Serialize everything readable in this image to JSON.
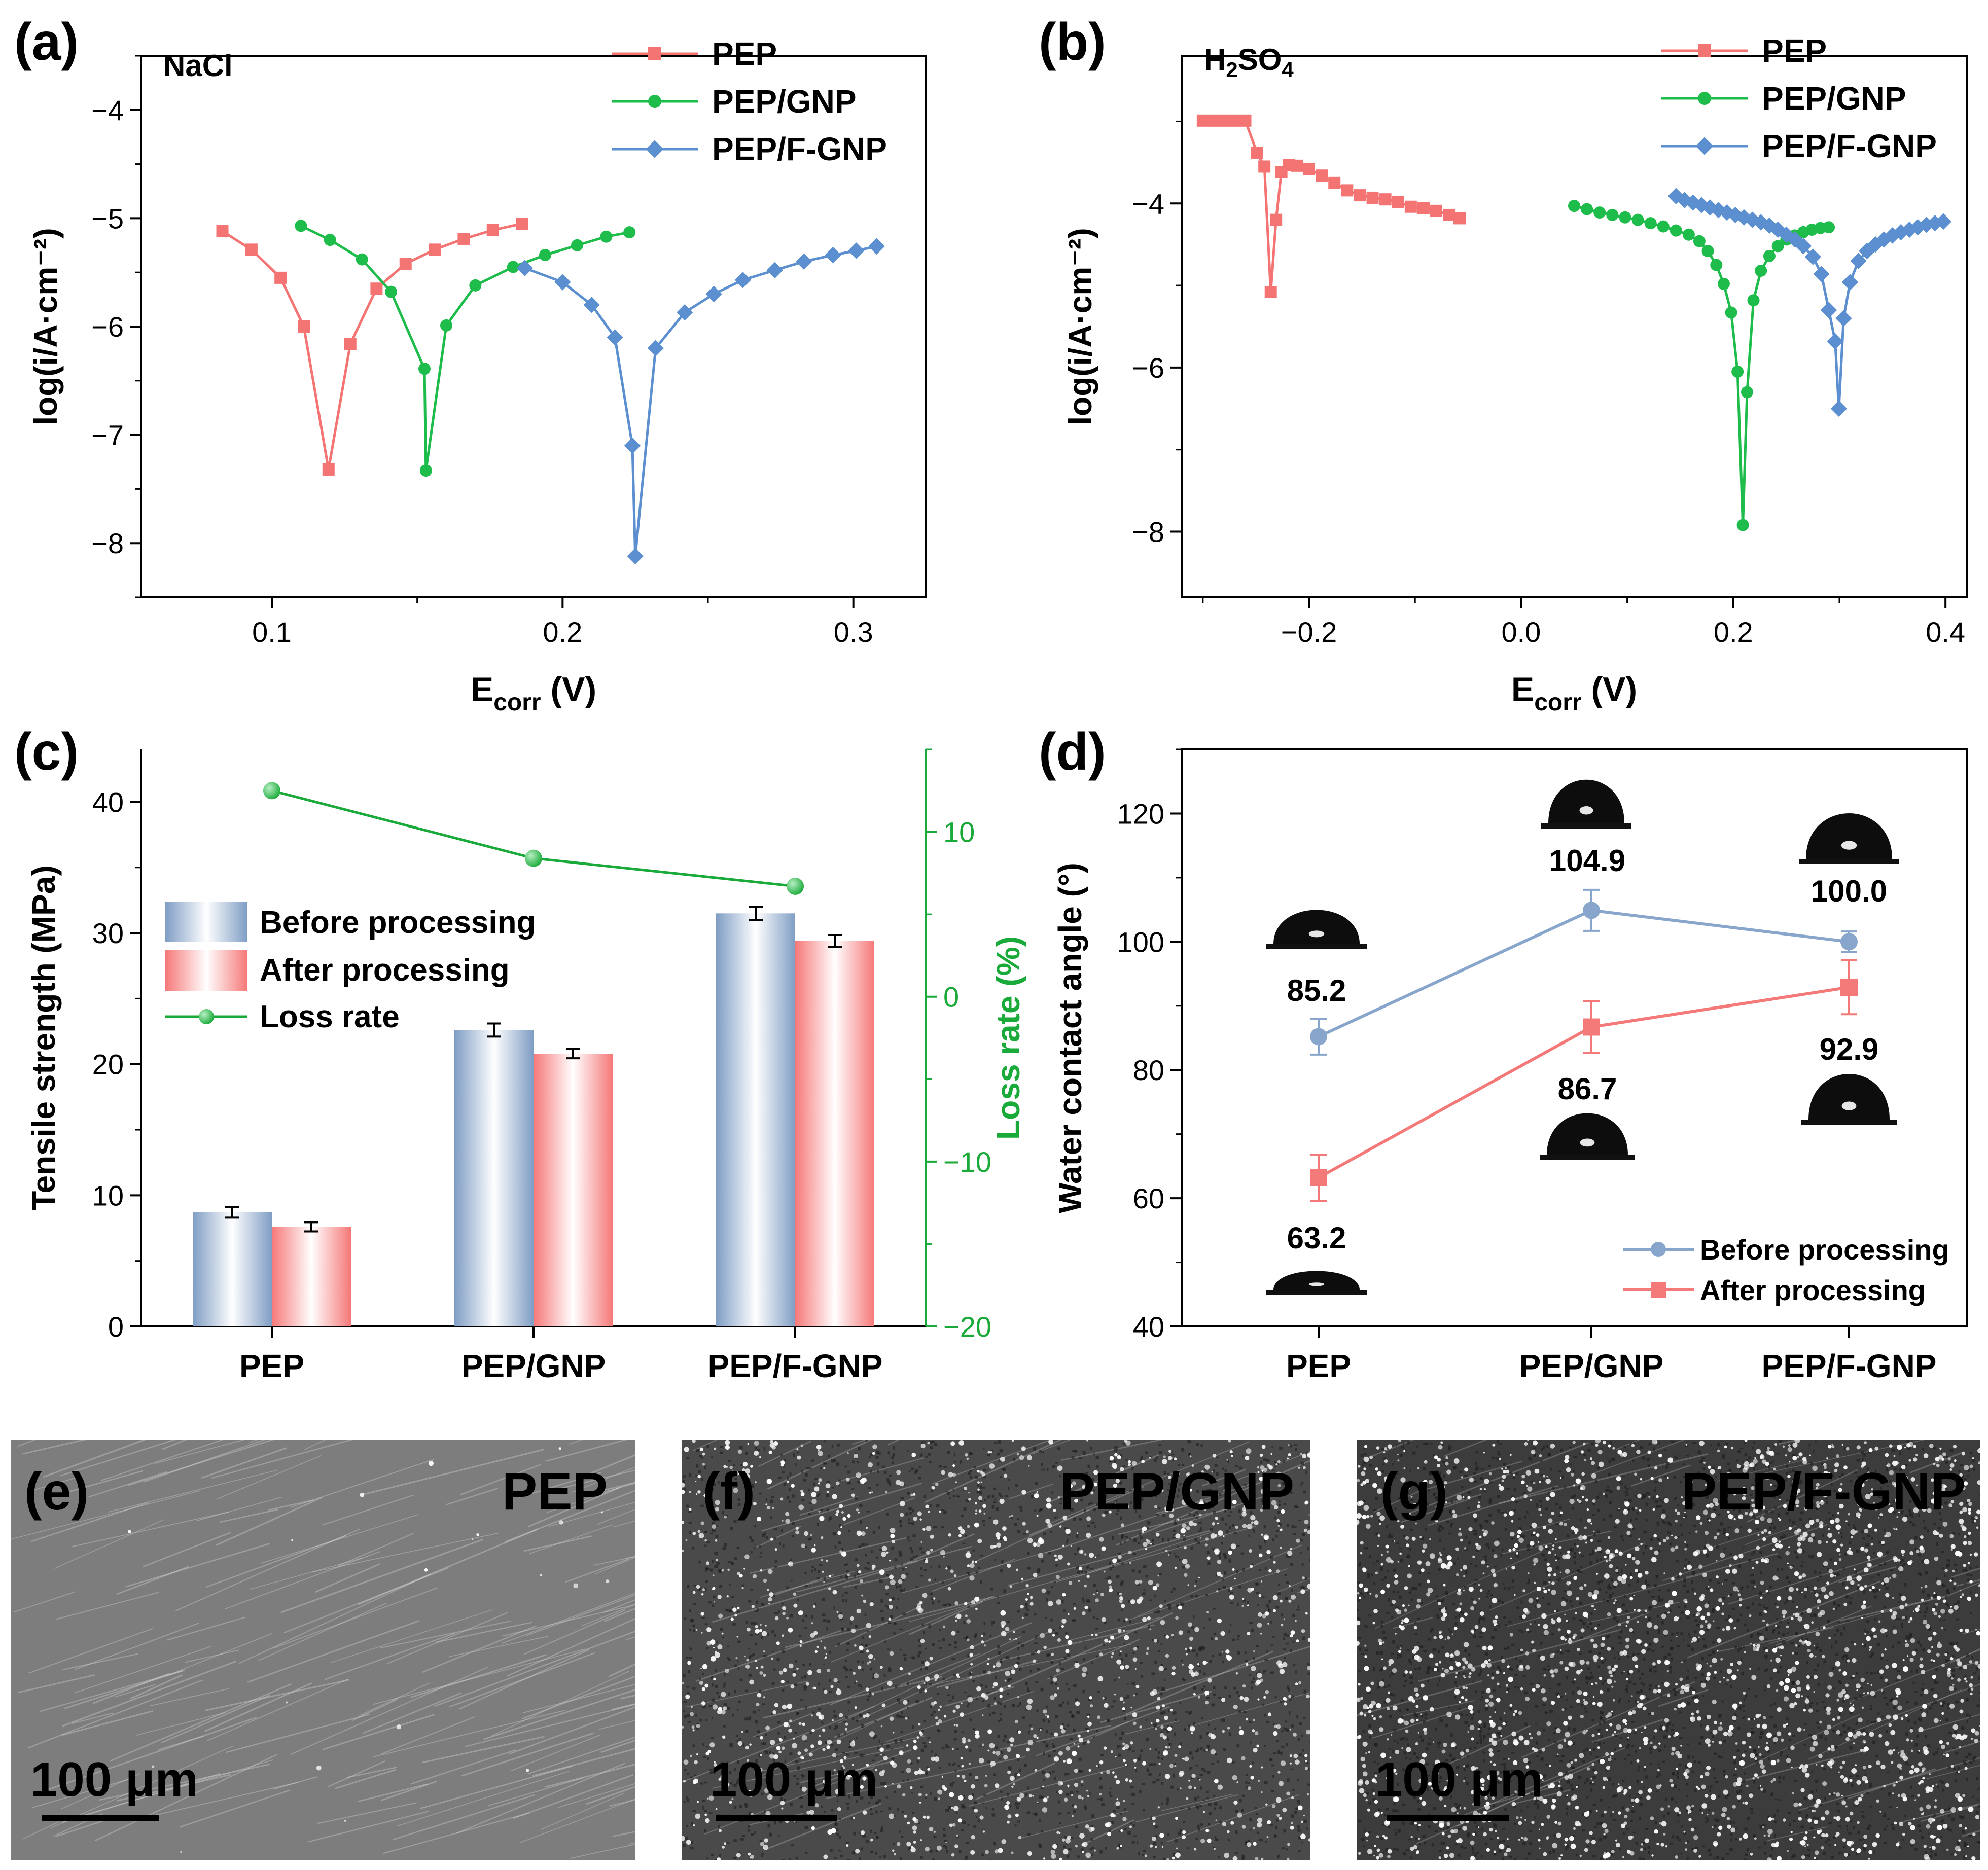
{
  "panel_letters": {
    "a": "(a)",
    "b": "(b)",
    "c": "(c)",
    "d": "(d)",
    "e": "(e)",
    "f": "(f)",
    "g": "(g)"
  },
  "colors": {
    "pep": "#f47474",
    "gnp": "#1ebc4a",
    "fgnp": "#5b8fd0",
    "loss": "#1aaa3a",
    "before": "#88a6cc",
    "after": "#f47a7a"
  },
  "chart_data": [
    {
      "id": "a",
      "type": "line",
      "annotation": "NaCl",
      "xlabel_main": "E",
      "xlabel_sub": "corr",
      "xlabel_unit": " (V)",
      "ylabel": "log(i/A·cm⁻²)",
      "xlim": [
        0.055,
        0.325
      ],
      "ylim": [
        -8.5,
        -3.5
      ],
      "xticks": [
        0.1,
        0.2,
        0.3
      ],
      "xtick_labels": [
        "0.1",
        "0.2",
        "0.3"
      ],
      "yticks": [
        -4,
        -5,
        -6,
        -7,
        -8
      ],
      "ytick_labels": [
        "−4",
        "−5",
        "−6",
        "−7",
        "−8"
      ],
      "series": [
        {
          "name": "PEP",
          "marker": "square",
          "color": "#f47474",
          "ecorr": 0.1195,
          "imin": -7.32,
          "points": [
            [
              0.083,
              -5.12
            ],
            [
              0.093,
              -5.29
            ],
            [
              0.103,
              -5.55
            ],
            [
              0.111,
              -6.0
            ],
            [
              0.1195,
              -7.32
            ],
            [
              0.127,
              -6.16
            ],
            [
              0.136,
              -5.65
            ],
            [
              0.146,
              -5.42
            ],
            [
              0.156,
              -5.29
            ],
            [
              0.166,
              -5.19
            ],
            [
              0.176,
              -5.11
            ],
            [
              0.186,
              -5.05
            ]
          ]
        },
        {
          "name": "PEP/GNP",
          "marker": "circle",
          "color": "#1ebc4a",
          "ecorr": 0.153,
          "imin": -7.33,
          "points": [
            [
              0.11,
              -5.07
            ],
            [
              0.12,
              -5.2
            ],
            [
              0.131,
              -5.38
            ],
            [
              0.141,
              -5.68
            ],
            [
              0.1525,
              -6.39
            ],
            [
              0.153,
              -7.33
            ],
            [
              0.16,
              -5.99
            ],
            [
              0.17,
              -5.62
            ],
            [
              0.183,
              -5.45
            ],
            [
              0.194,
              -5.34
            ],
            [
              0.205,
              -5.25
            ],
            [
              0.215,
              -5.17
            ],
            [
              0.223,
              -5.13
            ]
          ]
        },
        {
          "name": "PEP/F-GNP",
          "marker": "diamond",
          "color": "#5b8fd0",
          "ecorr": 0.225,
          "imin": -8.12,
          "points": [
            [
              0.187,
              -5.46
            ],
            [
              0.2,
              -5.59
            ],
            [
              0.21,
              -5.8
            ],
            [
              0.218,
              -6.1
            ],
            [
              0.224,
              -7.1
            ],
            [
              0.225,
              -8.12
            ],
            [
              0.232,
              -6.2
            ],
            [
              0.242,
              -5.87
            ],
            [
              0.252,
              -5.7
            ],
            [
              0.262,
              -5.57
            ],
            [
              0.273,
              -5.48
            ],
            [
              0.283,
              -5.4
            ],
            [
              0.293,
              -5.34
            ],
            [
              0.301,
              -5.3
            ],
            [
              0.308,
              -5.26
            ]
          ]
        }
      ]
    },
    {
      "id": "b",
      "type": "line",
      "annotation_main": "H",
      "annotation_sub1": "2",
      "annotation_mid": "SO",
      "annotation_sub2": "4",
      "xlabel_main": "E",
      "xlabel_sub": "corr",
      "xlabel_unit": " (V)",
      "ylabel": "log(i/A·cm⁻²)",
      "xlim": [
        -0.32,
        0.42
      ],
      "ylim": [
        -8.8,
        -2.2
      ],
      "xticks": [
        -0.2,
        0.0,
        0.2,
        0.4
      ],
      "xtick_labels": [
        "−0.2",
        "0.0",
        "0.2",
        "0.4"
      ],
      "yticks": [
        -4,
        -6,
        -8
      ],
      "ytick_labels": [
        "−4",
        "−6",
        "−8"
      ],
      "series": [
        {
          "name": "PEP",
          "marker": "square",
          "color": "#f47474",
          "points": [
            [
              -0.3,
              -2.99
            ],
            [
              -0.29,
              -2.99
            ],
            [
              -0.28,
              -2.99
            ],
            [
              -0.27,
              -2.99
            ],
            [
              -0.26,
              -2.99
            ],
            [
              -0.249,
              -3.38
            ],
            [
              -0.242,
              -3.55
            ],
            [
              -0.236,
              -5.08
            ],
            [
              -0.231,
              -4.2
            ],
            [
              -0.226,
              -3.62
            ],
            [
              -0.219,
              -3.53
            ],
            [
              -0.211,
              -3.54
            ],
            [
              -0.2,
              -3.58
            ],
            [
              -0.188,
              -3.66
            ],
            [
              -0.176,
              -3.75
            ],
            [
              -0.164,
              -3.84
            ],
            [
              -0.152,
              -3.9
            ],
            [
              -0.14,
              -3.93
            ],
            [
              -0.128,
              -3.95
            ],
            [
              -0.116,
              -3.98
            ],
            [
              -0.104,
              -4.04
            ],
            [
              -0.092,
              -4.06
            ],
            [
              -0.08,
              -4.09
            ],
            [
              -0.068,
              -4.14
            ],
            [
              -0.058,
              -4.18
            ]
          ]
        },
        {
          "name": "PEP/GNP",
          "marker": "circle",
          "color": "#1ebc4a",
          "points": [
            [
              0.05,
              -4.03
            ],
            [
              0.062,
              -4.07
            ],
            [
              0.074,
              -4.11
            ],
            [
              0.086,
              -4.14
            ],
            [
              0.098,
              -4.17
            ],
            [
              0.11,
              -4.2
            ],
            [
              0.122,
              -4.24
            ],
            [
              0.134,
              -4.28
            ],
            [
              0.146,
              -4.33
            ],
            [
              0.158,
              -4.38
            ],
            [
              0.168,
              -4.46
            ],
            [
              0.176,
              -4.58
            ],
            [
              0.184,
              -4.75
            ],
            [
              0.191,
              -4.98
            ],
            [
              0.198,
              -5.33
            ],
            [
              0.204,
              -6.05
            ],
            [
              0.209,
              -7.92
            ],
            [
              0.213,
              -6.3
            ],
            [
              0.219,
              -5.18
            ],
            [
              0.226,
              -4.82
            ],
            [
              0.234,
              -4.64
            ],
            [
              0.242,
              -4.52
            ],
            [
              0.25,
              -4.44
            ],
            [
              0.258,
              -4.39
            ],
            [
              0.266,
              -4.35
            ],
            [
              0.274,
              -4.32
            ],
            [
              0.282,
              -4.3
            ],
            [
              0.29,
              -4.29
            ]
          ]
        },
        {
          "name": "PEP/F-GNP",
          "marker": "diamond",
          "color": "#5b8fd0",
          "points": [
            [
              0.146,
              -3.91
            ],
            [
              0.154,
              -3.96
            ],
            [
              0.162,
              -3.99
            ],
            [
              0.17,
              -4.02
            ],
            [
              0.178,
              -4.05
            ],
            [
              0.186,
              -4.08
            ],
            [
              0.194,
              -4.11
            ],
            [
              0.202,
              -4.14
            ],
            [
              0.21,
              -4.17
            ],
            [
              0.218,
              -4.2
            ],
            [
              0.226,
              -4.23
            ],
            [
              0.234,
              -4.27
            ],
            [
              0.242,
              -4.32
            ],
            [
              0.25,
              -4.38
            ],
            [
              0.258,
              -4.44
            ],
            [
              0.266,
              -4.52
            ],
            [
              0.275,
              -4.65
            ],
            [
              0.283,
              -4.86
            ],
            [
              0.29,
              -5.3
            ],
            [
              0.296,
              -5.68
            ],
            [
              0.2995,
              -6.5
            ],
            [
              0.304,
              -5.4
            ],
            [
              0.31,
              -4.96
            ],
            [
              0.318,
              -4.7
            ],
            [
              0.326,
              -4.58
            ],
            [
              0.334,
              -4.5
            ],
            [
              0.342,
              -4.44
            ],
            [
              0.35,
              -4.39
            ],
            [
              0.358,
              -4.35
            ],
            [
              0.366,
              -4.32
            ],
            [
              0.374,
              -4.29
            ],
            [
              0.382,
              -4.26
            ],
            [
              0.39,
              -4.24
            ],
            [
              0.398,
              -4.22
            ]
          ]
        }
      ]
    },
    {
      "id": "c",
      "type": "bar",
      "categories": [
        "PEP",
        "PEP/GNP",
        "PEP/F-GNP"
      ],
      "ylabel": "Tensile strength (MPa)",
      "y2label": "Loss rate (%)",
      "ylim": [
        0,
        44
      ],
      "y2lim": [
        -20,
        15
      ],
      "yticks": [
        0,
        10,
        20,
        30,
        40
      ],
      "ytick_labels": [
        "0",
        "10",
        "20",
        "30",
        "40"
      ],
      "y2ticks": [
        -20,
        -10,
        0,
        10
      ],
      "y2tick_labels": [
        "−20",
        "−10",
        "0",
        "10"
      ],
      "series": [
        {
          "name": "Before processing",
          "color": "#88a6cc",
          "values": [
            8.7,
            22.6,
            31.5
          ],
          "errors": [
            0.4,
            0.5,
            0.5
          ]
        },
        {
          "name": "After processing",
          "color": "#f47a7a",
          "values": [
            7.6,
            20.8,
            29.4
          ],
          "errors": [
            0.35,
            0.35,
            0.45
          ]
        },
        {
          "name": "Loss rate",
          "color": "#1aaa3a",
          "axis": "right",
          "values": [
            12.5,
            8.4,
            6.7
          ]
        }
      ],
      "legend": [
        "Before processing",
        "After processing",
        "Loss rate"
      ]
    },
    {
      "id": "d",
      "type": "line",
      "categories": [
        "PEP",
        "PEP/GNP",
        "PEP/F-GNP"
      ],
      "ylabel": "Water contact angle (°)",
      "ylim": [
        40,
        130
      ],
      "yticks": [
        40,
        60,
        80,
        100,
        120
      ],
      "ytick_labels": [
        "40",
        "60",
        "80",
        "100",
        "120"
      ],
      "series": [
        {
          "name": "Before processing",
          "marker": "circle",
          "color": "#88a6cc",
          "values": [
            85.2,
            104.9,
            100.0
          ],
          "errors": [
            2.8,
            3.2,
            1.6
          ],
          "labels": [
            "85.2",
            "104.9",
            "100.0"
          ]
        },
        {
          "name": "After processing",
          "marker": "square",
          "color": "#f47a7a",
          "values": [
            63.2,
            86.7,
            92.9
          ],
          "errors": [
            3.6,
            4.0,
            4.2
          ],
          "labels": [
            "63.2",
            "86.7",
            "92.9"
          ]
        }
      ],
      "legend": [
        "Before processing",
        "After processing"
      ]
    }
  ],
  "micrographs": [
    {
      "letter": "(e)",
      "label": "PEP",
      "scale": "100 μm"
    },
    {
      "letter": "(f)",
      "label": "PEP/GNP",
      "scale": "100 μm"
    },
    {
      "letter": "(g)",
      "label": "PEP/F-GNP",
      "scale": "100 μm"
    }
  ]
}
